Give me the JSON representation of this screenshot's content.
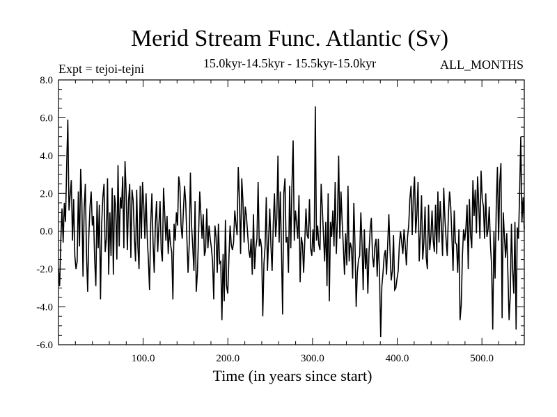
{
  "chart_data": {
    "type": "line",
    "title": "Merid Stream Func. Atlantic (Sv)",
    "subtitle": "15.0kyr-14.5kyr - 15.5kyr-15.0kyr",
    "annotation_left": "Expt = tejoi-tejni",
    "annotation_right": "ALL_MONTHS",
    "xlabel": "Time (in years since start)",
    "ylabel": "",
    "xlim": [
      0,
      550
    ],
    "ylim": [
      -6.0,
      8.0
    ],
    "xticks": [
      100,
      200,
      300,
      400,
      500
    ],
    "xtick_labels": [
      "100.0",
      "200.0",
      "300.0",
      "400.0",
      "500.0"
    ],
    "yticks": [
      -6,
      -4,
      -2,
      0,
      2,
      4,
      6,
      8
    ],
    "ytick_labels": [
      "-6.0",
      "-4.0",
      "-2.0",
      "0.0",
      "2.0",
      "4.0",
      "6.0",
      "8.0"
    ],
    "zero_line": true,
    "grid": false,
    "series": [
      {
        "values": [
          -2.0,
          -2.9,
          -0.5,
          1.2,
          -0.6,
          1.5,
          0.5,
          3.4,
          5.9,
          1.1,
          1.9,
          2.7,
          -0.5,
          1.7,
          -1.3,
          -2.0,
          -1.6,
          2.1,
          -0.8,
          3.3,
          1.6,
          -2.4,
          1.2,
          2.5,
          -1.2,
          -3.2,
          -0.2,
          1.3,
          2.1,
          0.3,
          0.8,
          -1.5,
          -2.9,
          1.6,
          -0.9,
          1.4,
          -3.6,
          0.4,
          1.8,
          2.5,
          -1.1,
          -0.4,
          2.8,
          -2.3,
          1.0,
          -1.3,
          2.3,
          -2.3,
          1.9,
          1.3,
          -1.5,
          3.5,
          -0.8,
          1.8,
          1.2,
          2.9,
          -0.9,
          3.7,
          2.0,
          -1.0,
          1.6,
          2.5,
          -1.4,
          2.2,
          1.6,
          -0.3,
          -1.6,
          2.2,
          -0.8,
          -2.0,
          2.4,
          -0.4,
          2.6,
          1.4,
          -0.4,
          2.0,
          -0.3,
          -1.5,
          -3.1,
          0.4,
          2.0,
          -0.6,
          -2.2,
          0.4,
          1.6,
          -1.1,
          0.3,
          1.6,
          -1.0,
          -1.6,
          2.3,
          0.9,
          -0.5,
          0.8,
          -1.2,
          0.1,
          -0.7,
          -1.1,
          -3.6,
          0.4,
          -0.5,
          1.0,
          0.3,
          2.9,
          2.4,
          0.3,
          -0.4,
          1.1,
          2.4,
          1.5,
          -0.4,
          -2.2,
          -0.7,
          3.1,
          0.3,
          -0.8,
          -2.1,
          1.6,
          -3.2,
          -2.2,
          -0.2,
          2.1,
          0.9,
          -0.4,
          0.9,
          -1.3,
          -1.0,
          1.2,
          -0.9,
          0.3,
          -0.4,
          -0.9,
          -1.6,
          -3.6,
          0.3,
          -0.3,
          -2.2,
          0.4,
          -1.7,
          -1.6,
          -4.7,
          -1.2,
          -3.7,
          0.6,
          -2.9,
          -3.3,
          -1.4,
          0.3,
          -0.7,
          -1.0,
          -0.6,
          1.1,
          0.4,
          -0.2,
          3.4,
          1.7,
          -1.2,
          2.8,
          1.6,
          -0.6,
          1.3,
          0.8,
          -0.1,
          -1.0,
          -1.4,
          -0.4,
          -2.3,
          0.9,
          -2.0,
          -0.9,
          -0.4,
          2.6,
          -0.8,
          -0.4,
          -0.9,
          -4.5,
          -1.7,
          -0.8,
          1.8,
          -2.1,
          -0.4,
          1.2,
          -0.8,
          -2.1,
          0.4,
          2.0,
          -0.3,
          0.7,
          4.0,
          -0.6,
          2.1,
          -1.0,
          -4.4,
          2.0,
          2.8,
          -0.6,
          -0.3,
          -2.2,
          2.4,
          -0.9,
          2.5,
          4.8,
          -0.5,
          1.1,
          0.4,
          -0.4,
          1.9,
          -2.7,
          -0.3,
          -0.7,
          -2.2,
          -0.5,
          1.2,
          -0.2,
          -0.4,
          1.7,
          -0.9,
          -1.3,
          0.1,
          -1.1,
          6.6,
          -0.5,
          0.3,
          -0.7,
          -1.0,
          2.5,
          1.2,
          -0.2,
          -1.6,
          0.5,
          -2.9,
          2.0,
          -3.7,
          0.5,
          -0.3,
          1.1,
          -0.8,
          2.6,
          -1.2,
          0.7,
          4.0,
          -0.4,
          2.1,
          0.5,
          -0.8,
          -2.3,
          -0.1,
          -1.8,
          2.4,
          -1.6,
          -0.6,
          -0.9,
          -2.5,
          1.5,
          -0.7,
          -4.0,
          -2.2,
          -1.5,
          -1.3,
          1.0,
          -0.6,
          -3.1,
          0.1,
          -2.0,
          -0.9,
          -3.3,
          -1.1,
          0.1,
          0.7,
          -1.3,
          -1.9,
          -0.8,
          -0.4,
          -2.4,
          -0.4,
          -2.2,
          -5.6,
          -2.9,
          -2.2,
          -1.3,
          -1.0,
          -2.3,
          -0.7,
          0.9,
          -1.0,
          -2.6,
          -2.1,
          -0.2,
          -3.1,
          -3.0,
          -2.5,
          -2.1,
          -0.7,
          0.0,
          -0.6,
          -1.2,
          0.1,
          -0.7,
          -1.8,
          -0.3,
          0.3,
          1.7,
          2.4,
          -0.2,
          1.9,
          2.9,
          -0.1,
          0.9,
          2.6,
          -1.6,
          0.0,
          1.9,
          -1.5,
          -0.6,
          1.3,
          -1.4,
          -2.0,
          1.4,
          -1.0,
          -0.3,
          1.1,
          -0.5,
          -1.1,
          1.4,
          -1.2,
          2.1,
          -0.6,
          1.6,
          0.3,
          -1.3,
          2.3,
          0.7,
          -0.4,
          -1.3,
          0.9,
          2.1,
          1.3,
          -0.3,
          -2.1,
          1.1,
          -0.6,
          -0.7,
          -2.2,
          0.1,
          -4.7,
          -3.9,
          -1.3,
          0.1,
          -0.5,
          0.2,
          1.4,
          -2.0,
          1.7,
          -0.2,
          -0.9,
          2.7,
          0.8,
          2.2,
          -0.1,
          2.9,
          1.4,
          -0.4,
          3.2,
          1.7,
          1.3,
          -0.4,
          2.0,
          -0.3,
          0.1,
          1.3,
          -0.7,
          -1.8,
          -5.2,
          0.0,
          -2.5,
          1.3,
          3.4,
          -0.5,
          2.6,
          3.6,
          -4.6,
          1.0,
          -0.3,
          -1.4,
          -0.1,
          -2.3,
          -4.7,
          -3.4,
          0.4,
          -2.0,
          -3.3,
          0.5,
          -5.2,
          0.2,
          -0.4,
          1.9,
          5.0,
          0.5,
          1.8,
          0.1
        ]
      }
    ]
  }
}
